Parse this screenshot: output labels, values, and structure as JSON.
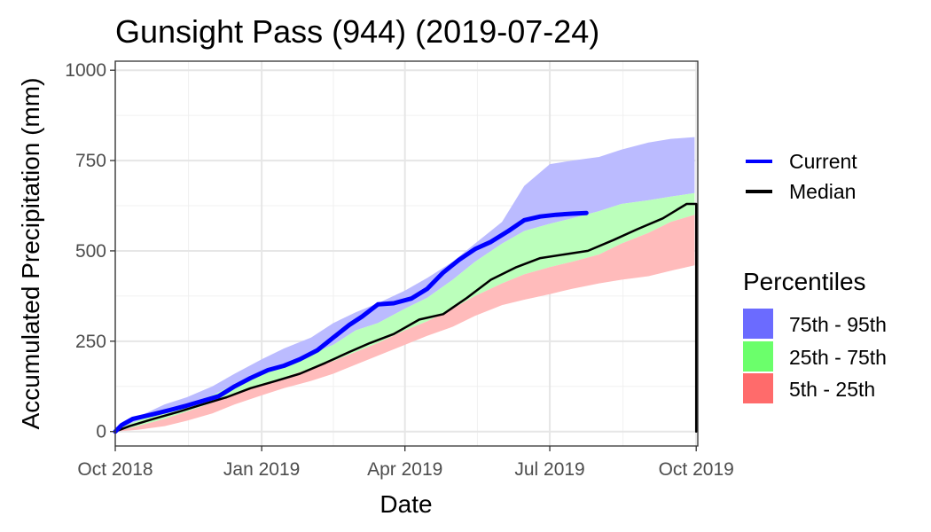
{
  "chart_data": {
    "type": "area",
    "title": "Gunsight Pass (944) (2019-07-24)",
    "xlabel": "Date",
    "ylabel": "Accumulated Precipitation (mm)",
    "x_range": [
      "2018-10-01",
      "2019-10-02"
    ],
    "ylim": [
      -40,
      1025
    ],
    "x_ticks": [
      {
        "date": "2018-10-01",
        "label": "Oct 2018"
      },
      {
        "date": "2019-01-01",
        "label": "Jan 2019"
      },
      {
        "date": "2019-04-01",
        "label": "Apr 2019"
      },
      {
        "date": "2019-07-01",
        "label": "Jul 2019"
      },
      {
        "date": "2019-10-01",
        "label": "Oct 2019"
      }
    ],
    "y_ticks": [
      0,
      250,
      500,
      750,
      1000
    ],
    "grid": true,
    "legend_placement": "right",
    "series": [
      {
        "name": "Current",
        "kind": "line",
        "color": "#0000ff",
        "points": [
          [
            "2018-10-01",
            0
          ],
          [
            "2018-10-05",
            18
          ],
          [
            "2018-10-12",
            35
          ],
          [
            "2018-10-25",
            48
          ],
          [
            "2018-11-05",
            60
          ],
          [
            "2018-11-15",
            72
          ],
          [
            "2018-11-25",
            85
          ],
          [
            "2018-12-05",
            98
          ],
          [
            "2018-12-15",
            125
          ],
          [
            "2018-12-25",
            148
          ],
          [
            "2019-01-05",
            170
          ],
          [
            "2019-01-15",
            182
          ],
          [
            "2019-01-25",
            200
          ],
          [
            "2019-02-05",
            225
          ],
          [
            "2019-02-15",
            260
          ],
          [
            "2019-02-25",
            295
          ],
          [
            "2019-03-05",
            318
          ],
          [
            "2019-03-15",
            352
          ],
          [
            "2019-03-25",
            355
          ],
          [
            "2019-04-05",
            368
          ],
          [
            "2019-04-15",
            395
          ],
          [
            "2019-04-25",
            440
          ],
          [
            "2019-05-05",
            475
          ],
          [
            "2019-05-15",
            505
          ],
          [
            "2019-05-25",
            525
          ],
          [
            "2019-06-05",
            555
          ],
          [
            "2019-06-15",
            585
          ],
          [
            "2019-06-25",
            595
          ],
          [
            "2019-07-05",
            600
          ],
          [
            "2019-07-15",
            603
          ],
          [
            "2019-07-24",
            605
          ]
        ]
      },
      {
        "name": "Median",
        "kind": "line",
        "color": "#000000",
        "points": [
          [
            "2018-10-01",
            0
          ],
          [
            "2018-10-10",
            15
          ],
          [
            "2018-10-25",
            35
          ],
          [
            "2018-11-10",
            55
          ],
          [
            "2018-11-25",
            75
          ],
          [
            "2018-12-10",
            95
          ],
          [
            "2018-12-25",
            120
          ],
          [
            "2019-01-10",
            140
          ],
          [
            "2019-01-25",
            160
          ],
          [
            "2019-02-10",
            190
          ],
          [
            "2019-02-25",
            220
          ],
          [
            "2019-03-10",
            245
          ],
          [
            "2019-03-25",
            270
          ],
          [
            "2019-04-10",
            310
          ],
          [
            "2019-04-25",
            325
          ],
          [
            "2019-05-10",
            370
          ],
          [
            "2019-05-25",
            420
          ],
          [
            "2019-06-10",
            455
          ],
          [
            "2019-06-25",
            480
          ],
          [
            "2019-07-10",
            490
          ],
          [
            "2019-07-25",
            500
          ],
          [
            "2019-08-10",
            530
          ],
          [
            "2019-08-25",
            560
          ],
          [
            "2019-09-10",
            590
          ],
          [
            "2019-09-25",
            630
          ],
          [
            "2019-10-01",
            630
          ],
          [
            "2019-10-01",
            0
          ]
        ]
      }
    ],
    "percentile_bands": {
      "dates": [
        "2018-10-01",
        "2018-10-15",
        "2018-11-01",
        "2018-11-15",
        "2018-12-01",
        "2018-12-15",
        "2019-01-01",
        "2019-01-15",
        "2019-02-01",
        "2019-02-15",
        "2019-03-01",
        "2019-03-15",
        "2019-04-01",
        "2019-04-15",
        "2019-05-01",
        "2019-05-15",
        "2019-06-01",
        "2019-06-15",
        "2019-07-01",
        "2019-07-15",
        "2019-08-01",
        "2019-08-15",
        "2019-09-01",
        "2019-09-15",
        "2019-09-30"
      ],
      "p5": [
        0,
        5,
        15,
        30,
        50,
        75,
        100,
        120,
        140,
        160,
        185,
        210,
        240,
        265,
        290,
        320,
        350,
        365,
        380,
        395,
        410,
        420,
        430,
        445,
        460
      ],
      "p25": [
        0,
        15,
        35,
        55,
        80,
        100,
        130,
        150,
        175,
        195,
        220,
        245,
        280,
        305,
        340,
        375,
        410,
        435,
        455,
        470,
        490,
        520,
        550,
        580,
        600
      ],
      "p75": [
        5,
        30,
        55,
        75,
        100,
        130,
        160,
        185,
        215,
        240,
        280,
        300,
        340,
        370,
        420,
        470,
        520,
        555,
        575,
        590,
        610,
        630,
        640,
        650,
        660
      ],
      "p95": [
        10,
        40,
        75,
        95,
        125,
        160,
        200,
        230,
        260,
        300,
        330,
        355,
        390,
        425,
        470,
        520,
        580,
        680,
        740,
        750,
        760,
        780,
        800,
        810,
        815
      ],
      "legend_title": "Percentiles",
      "bands": [
        {
          "label": "75th - 95th",
          "fill": "#bbbbff",
          "key": "#6b6bff"
        },
        {
          "label": "25th - 75th",
          "fill": "#bbffbb",
          "key": "#6bff6b"
        },
        {
          "label": "5th - 25th",
          "fill": "#ffbbbb",
          "key": "#ff6b6b"
        }
      ]
    }
  }
}
